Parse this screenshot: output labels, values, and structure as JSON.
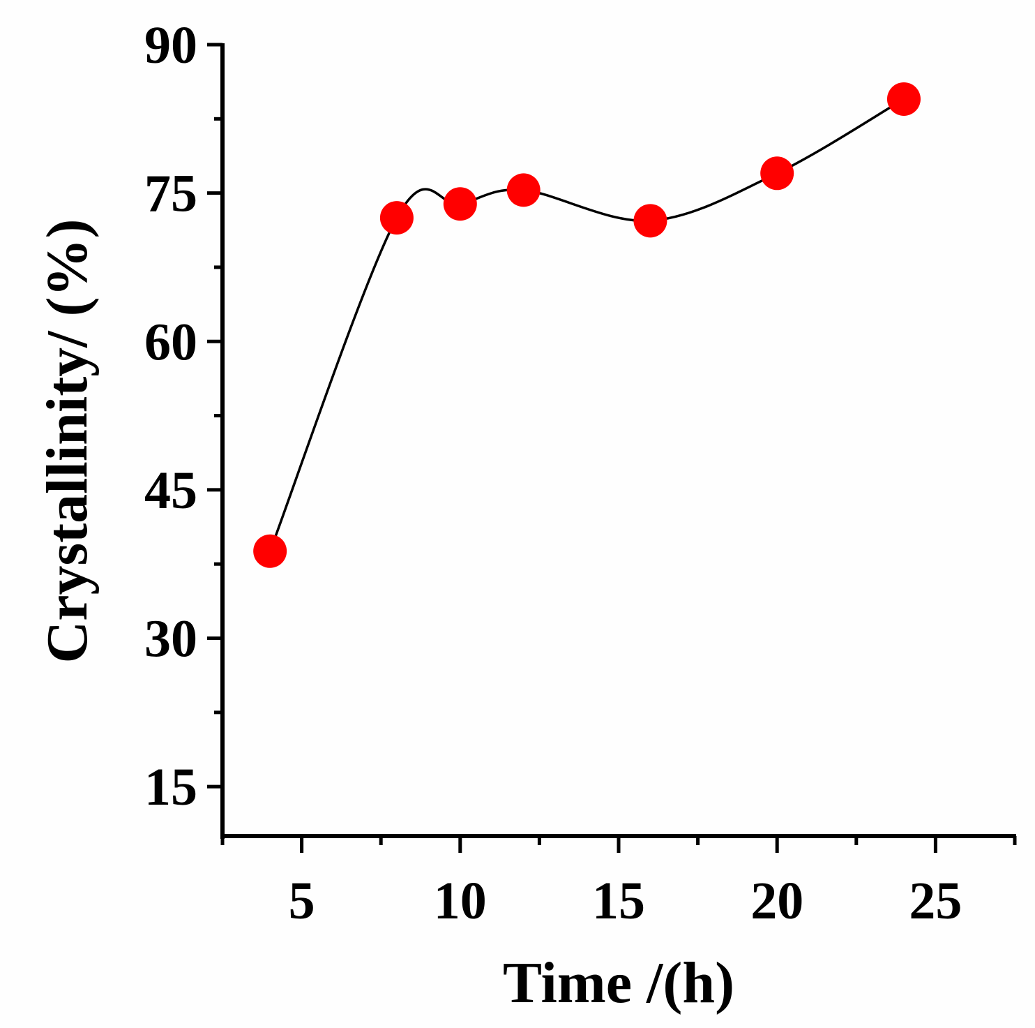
{
  "chart_data": {
    "type": "scatter",
    "title": "",
    "xlabel": "Time /(h)",
    "ylabel": "Crystallinity/ (%)",
    "xlim": [
      2.5,
      27.5
    ],
    "ylim": [
      10,
      90
    ],
    "x_ticks": [
      5,
      10,
      15,
      20,
      25
    ],
    "x_minor_ticks": [
      2.5,
      7.5,
      12.5,
      17.5,
      22.5,
      27.5
    ],
    "y_ticks": [
      15,
      30,
      45,
      60,
      75,
      90
    ],
    "y_minor_ticks": [
      22.5,
      37.5,
      52.5,
      67.5,
      82.5
    ],
    "grid": false,
    "legend": "none",
    "series": [
      {
        "name": "Crystallinity",
        "x": [
          4,
          8,
          10,
          12,
          16,
          20,
          24
        ],
        "y": [
          38.8,
          72.5,
          73.9,
          75.3,
          72.2,
          77.0,
          84.5
        ],
        "marker_color": "#ff0000",
        "line_color": "#000000",
        "smoothed_line": true
      }
    ]
  }
}
